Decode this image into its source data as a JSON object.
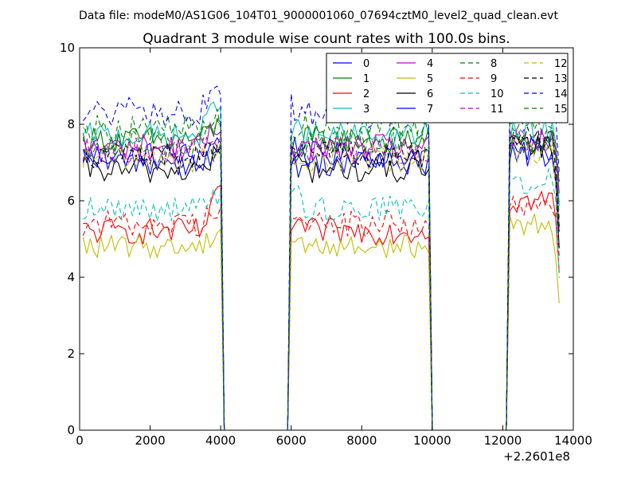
{
  "figure": {
    "suptitle": "Data file: modeM0/AS1G06_104T01_9000001060_07694cztM0_level2_quad_clean.evt"
  },
  "chart_data": {
    "type": "line",
    "title": "Quadrant 3 module wise count rates with 100.0s bins.",
    "xlabel": "",
    "ylabel": "",
    "x_offset_label": "+2.2601e8",
    "xlim": [
      0,
      14000
    ],
    "ylim": [
      0,
      10
    ],
    "xticks": [
      "0",
      "2000",
      "4000",
      "6000",
      "8000",
      "10000",
      "12000",
      "14000"
    ],
    "yticks": [
      "0",
      "2",
      "4",
      "6",
      "8",
      "10"
    ],
    "grid": false,
    "legend_position": "top-right",
    "bin_seconds": 100,
    "good_intervals": [
      [
        100,
        4000
      ],
      [
        6000,
        9900
      ],
      [
        12200,
        13600
      ]
    ],
    "series": [
      {
        "name": "0",
        "color": "#0000ff",
        "dash": "solid",
        "level": 7.2,
        "noise": 0.35,
        "end1": 7.6,
        "end2": 7.4,
        "seg3": 7.2,
        "drop": 5.8
      },
      {
        "name": "1",
        "color": "#008000",
        "dash": "solid",
        "level": 7.6,
        "noise": 0.35,
        "end1": 8.0,
        "end2": 7.2,
        "seg3": 7.5,
        "drop": 6.5
      },
      {
        "name": "2",
        "color": "#ff0000",
        "dash": "solid",
        "level": 5.2,
        "noise": 0.35,
        "end1": 6.2,
        "end2": 5.4,
        "seg3": 6.0,
        "drop": 4.3
      },
      {
        "name": "3",
        "color": "#00bfbf",
        "dash": "solid",
        "level": 7.7,
        "noise": 0.35,
        "end1": 8.8,
        "end2": 7.8,
        "seg3": 7.8,
        "drop": 6.2
      },
      {
        "name": "4",
        "color": "#bf00bf",
        "dash": "solid",
        "level": 7.4,
        "noise": 0.35,
        "end1": 8.0,
        "end2": 7.5,
        "seg3": 7.5,
        "drop": 6.0
      },
      {
        "name": "5",
        "color": "#bfbf00",
        "dash": "solid",
        "level": 4.8,
        "noise": 0.3,
        "end1": 5.3,
        "end2": 5.0,
        "seg3": 5.4,
        "drop": 3.3
      },
      {
        "name": "6",
        "color": "#000000",
        "dash": "solid",
        "level": 6.8,
        "noise": 0.35,
        "end1": 7.3,
        "end2": 7.0,
        "seg3": 7.4,
        "drop": 4.9
      },
      {
        "name": "7",
        "color": "#0000ff",
        "dash": "solid",
        "level": 7.0,
        "noise": 0.35,
        "end1": 7.2,
        "end2": 6.9,
        "seg3": 7.3,
        "drop": 5.5
      },
      {
        "name": "8",
        "color": "#008000",
        "dash": "dashed",
        "level": 7.9,
        "noise": 0.35,
        "end1": 8.2,
        "end2": 7.8,
        "seg3": 8.0,
        "drop": 6.3
      },
      {
        "name": "9",
        "color": "#ff0000",
        "dash": "dashed",
        "level": 5.4,
        "noise": 0.35,
        "end1": 6.0,
        "end2": 5.5,
        "seg3": 5.8,
        "drop": 4.5
      },
      {
        "name": "10",
        "color": "#00bfbf",
        "dash": "dashed",
        "level": 5.8,
        "noise": 0.35,
        "end1": 6.2,
        "end2": 6.1,
        "seg3": 6.5,
        "drop": 4.1
      },
      {
        "name": "11",
        "color": "#bf00bf",
        "dash": "dashed",
        "level": 7.3,
        "noise": 0.35,
        "end1": 7.6,
        "end2": 7.3,
        "seg3": 7.6,
        "drop": 5.6
      },
      {
        "name": "12",
        "color": "#bfbf00",
        "dash": "dashed",
        "level": 7.1,
        "noise": 0.35,
        "end1": 7.3,
        "end2": 7.0,
        "seg3": 7.3,
        "drop": 5.0
      },
      {
        "name": "13",
        "color": "#000000",
        "dash": "dashed",
        "level": 7.2,
        "noise": 0.35,
        "end1": 7.4,
        "end2": 7.2,
        "seg3": 7.6,
        "drop": 5.2
      },
      {
        "name": "14",
        "color": "#0000ff",
        "dash": "dashed",
        "level": 8.3,
        "noise": 0.4,
        "end1": 8.9,
        "end2": 8.5,
        "seg3": 8.8,
        "drop": 6.8
      },
      {
        "name": "15",
        "color": "#008000",
        "dash": "dashed",
        "level": 7.5,
        "noise": 0.35,
        "end1": 7.9,
        "end2": 7.4,
        "seg3": 7.5,
        "drop": 5.8
      }
    ]
  }
}
